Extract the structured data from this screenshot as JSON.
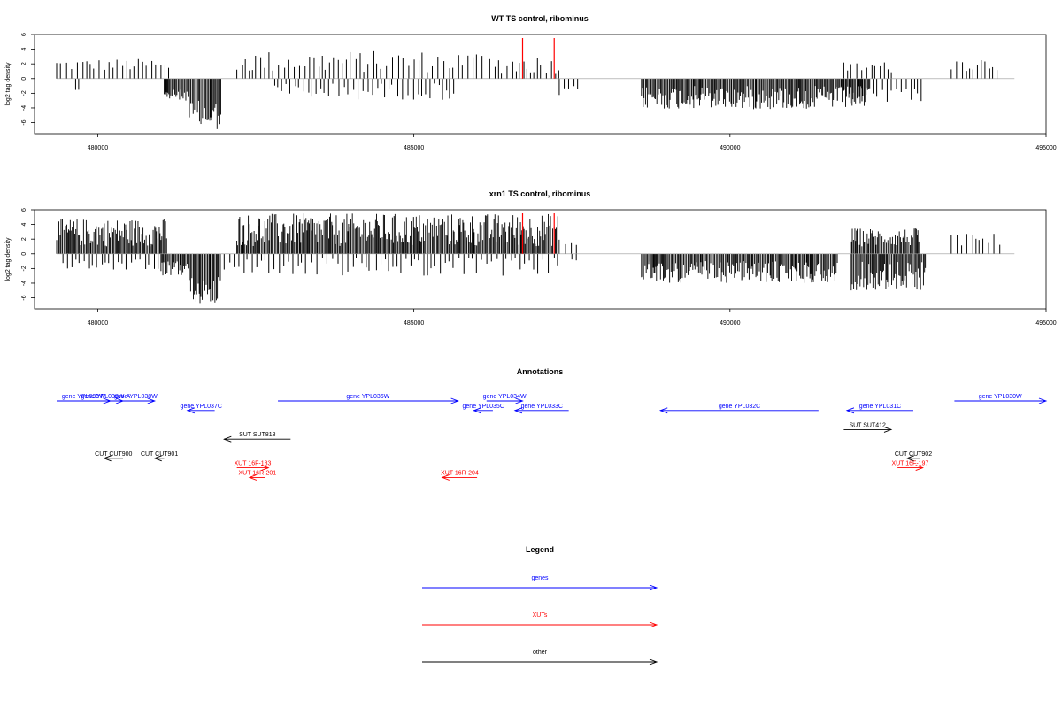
{
  "colors": {
    "genes": "#0000ff",
    "xuts": "#ff0000",
    "other": "#000000",
    "highlight": "#ff0000"
  },
  "chart_data": [
    {
      "type": "bar",
      "title": "WT TS control, ribominus",
      "ylabel": "log2 tag density",
      "xlim": [
        479000,
        495000
      ],
      "ylim": [
        -7.5,
        6
      ],
      "x_ticks": [
        "480000",
        "485000",
        "490000",
        "495000"
      ],
      "y_ticks": [
        "-6",
        "-4",
        "-2",
        "0",
        "2",
        "4",
        "6"
      ],
      "highlight_positions": [
        486720,
        487220
      ],
      "density_profile": [
        {
          "x_start": 479350,
          "x_end": 480950,
          "kind": "sparse",
          "sign": 1,
          "min": 1,
          "max": 2.7
        },
        {
          "x_start": 479650,
          "x_end": 479700,
          "kind": "sparse",
          "sign": -1,
          "min": 1.4,
          "max": 1.6
        },
        {
          "x_start": 481000,
          "x_end": 481150,
          "kind": "sparse",
          "sign": 1,
          "min": 1,
          "max": 2.2
        },
        {
          "x_start": 481050,
          "x_end": 481450,
          "kind": "dense",
          "sign": -1,
          "min": 1.5,
          "max": 3
        },
        {
          "x_start": 481450,
          "x_end": 481950,
          "kind": "dense",
          "sign": -1,
          "min": 3,
          "max": 7
        },
        {
          "x_start": 482200,
          "x_end": 486100,
          "kind": "sparse",
          "sign": 1,
          "min": 0.8,
          "max": 3.8
        },
        {
          "x_start": 482800,
          "x_end": 485700,
          "kind": "sparse",
          "sign": -1,
          "min": 0.6,
          "max": 2.9
        },
        {
          "x_start": 486200,
          "x_end": 487300,
          "kind": "sparse",
          "sign": 1,
          "min": 0.6,
          "max": 3.2
        },
        {
          "x_start": 487300,
          "x_end": 487600,
          "kind": "sparse",
          "sign": -1,
          "min": 1,
          "max": 2.5
        },
        {
          "x_start": 488600,
          "x_end": 492200,
          "kind": "dense",
          "sign": -1,
          "min": 1,
          "max": 4.2
        },
        {
          "x_start": 491700,
          "x_end": 493100,
          "kind": "sparse",
          "sign": -1,
          "min": 1,
          "max": 3.2
        },
        {
          "x_start": 491800,
          "x_end": 492600,
          "kind": "sparse",
          "sign": 1,
          "min": 0.8,
          "max": 2.3
        },
        {
          "x_start": 493500,
          "x_end": 494300,
          "kind": "sparse",
          "sign": 1,
          "min": 1,
          "max": 3
        }
      ]
    },
    {
      "type": "bar",
      "title": "xrn1 TS control, ribominus",
      "ylabel": "log2 tag density",
      "xlim": [
        479000,
        495000
      ],
      "ylim": [
        -7.5,
        6
      ],
      "x_ticks": [
        "480000",
        "485000",
        "490000",
        "495000"
      ],
      "y_ticks": [
        "-6",
        "-4",
        "-2",
        "0",
        "2",
        "4",
        "6"
      ],
      "highlight_positions": [
        486720,
        487220
      ],
      "density_profile": [
        {
          "x_start": 479350,
          "x_end": 481100,
          "kind": "dense",
          "sign": 1,
          "min": 1,
          "max": 4.8
        },
        {
          "x_start": 479450,
          "x_end": 481000,
          "kind": "sparse",
          "sign": -1,
          "min": 0.5,
          "max": 2.2
        },
        {
          "x_start": 481000,
          "x_end": 481450,
          "kind": "dense",
          "sign": -1,
          "min": 1,
          "max": 3
        },
        {
          "x_start": 481450,
          "x_end": 481950,
          "kind": "dense",
          "sign": -1,
          "min": 3,
          "max": 7
        },
        {
          "x_start": 482200,
          "x_end": 487300,
          "kind": "dense",
          "sign": 1,
          "min": 1,
          "max": 5.5
        },
        {
          "x_start": 482000,
          "x_end": 487300,
          "kind": "sparse",
          "sign": -1,
          "min": 0.5,
          "max": 3
        },
        {
          "x_start": 487400,
          "x_end": 487600,
          "kind": "sparse",
          "sign": 1,
          "min": 1,
          "max": 1.5
        },
        {
          "x_start": 487500,
          "x_end": 487600,
          "kind": "sparse",
          "sign": -1,
          "min": 0.5,
          "max": 1
        },
        {
          "x_start": 488600,
          "x_end": 491700,
          "kind": "dense",
          "sign": -1,
          "min": 1,
          "max": 4
        },
        {
          "x_start": 491900,
          "x_end": 493000,
          "kind": "dense",
          "sign": 1,
          "min": 1,
          "max": 3.5
        },
        {
          "x_start": 491900,
          "x_end": 493100,
          "kind": "dense",
          "sign": -1,
          "min": 1,
          "max": 5
        },
        {
          "x_start": 493500,
          "x_end": 494300,
          "kind": "sparse",
          "sign": 1,
          "min": 1,
          "max": 2.8
        }
      ]
    }
  ],
  "annotations": {
    "title": "Annotations",
    "xlim": [
      479000,
      495000
    ],
    "features": [
      {
        "label": "gene YPL039W",
        "type": "genes",
        "row": 0,
        "start": 479350,
        "end": 480200
      },
      {
        "label": "gene YPL038W-A",
        "type": "genes",
        "row": 0,
        "start": 479850,
        "end": 480400
      },
      {
        "label": "gene YPL038W",
        "type": "genes",
        "row": 0,
        "start": 480300,
        "end": 480900
      },
      {
        "label": "gene YPL037C",
        "type": "genes",
        "row": 1,
        "start": 481850,
        "end": 481420
      },
      {
        "label": "gene YPL036W",
        "type": "genes",
        "row": 0,
        "start": 482850,
        "end": 485700
      },
      {
        "label": "gene YPL035C",
        "type": "genes",
        "row": 1,
        "start": 486250,
        "end": 485950
      },
      {
        "label": "gene YPL034W",
        "type": "genes",
        "row": 0,
        "start": 486150,
        "end": 486720
      },
      {
        "label": "gene YPL033C",
        "type": "genes",
        "row": 1,
        "start": 487450,
        "end": 486600
      },
      {
        "label": "gene YPL032C",
        "type": "genes",
        "row": 1,
        "start": 491400,
        "end": 488900
      },
      {
        "label": "gene YPL031C",
        "type": "genes",
        "row": 1,
        "start": 492900,
        "end": 491850
      },
      {
        "label": "gene YPL030W",
        "type": "genes",
        "row": 0,
        "start": 493550,
        "end": 495000
      },
      {
        "label": "SUT SUT818",
        "type": "other",
        "row": 4,
        "start": 483050,
        "end": 482000
      },
      {
        "label": "SUT SUT412",
        "type": "other",
        "row": 3,
        "start": 491800,
        "end": 492550
      },
      {
        "label": "CUT CUT900",
        "type": "other",
        "row": 6,
        "start": 480400,
        "end": 480100
      },
      {
        "label": "CUT CUT901",
        "type": "other",
        "row": 6,
        "start": 481050,
        "end": 480900
      },
      {
        "label": "CUT CUT902",
        "type": "other",
        "row": 6,
        "start": 493000,
        "end": 492800
      },
      {
        "label": "XUT 16F-183",
        "type": "xuts",
        "row": 7,
        "start": 482200,
        "end": 482700
      },
      {
        "label": "XUT 16R-201",
        "type": "xuts",
        "row": 8,
        "start": 482650,
        "end": 482400
      },
      {
        "label": "XUT 16R-204",
        "type": "xuts",
        "row": 8,
        "start": 486000,
        "end": 485450
      },
      {
        "label": "XUT 16F-197",
        "type": "xuts",
        "row": 7,
        "start": 492650,
        "end": 493050
      }
    ]
  },
  "legend": {
    "title": "Legend",
    "entries": [
      {
        "label": "genes",
        "type": "genes"
      },
      {
        "label": "XUTs",
        "type": "xuts"
      },
      {
        "label": "other",
        "type": "other"
      }
    ]
  }
}
